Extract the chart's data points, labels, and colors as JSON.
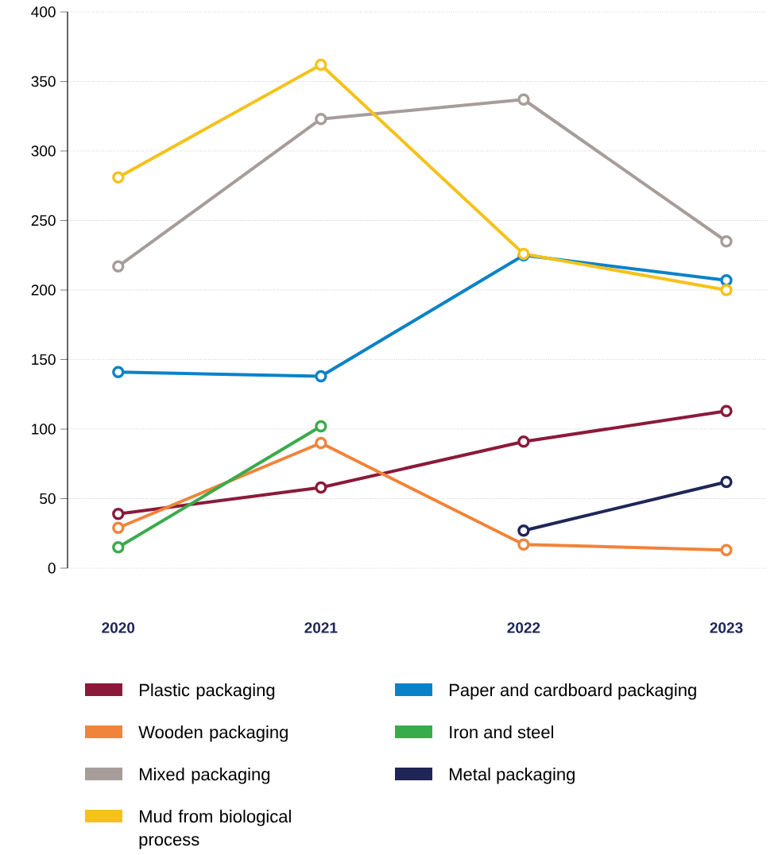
{
  "chart_data": {
    "type": "line",
    "categories": [
      "2020",
      "2021",
      "2022",
      "2023"
    ],
    "series": [
      {
        "name": "Plastic packaging",
        "color": "#8b1a3a",
        "values": [
          39,
          58,
          91,
          113
        ]
      },
      {
        "name": "Paper and cardboard packaging",
        "color": "#0a82c8",
        "values": [
          141,
          138,
          225,
          207
        ]
      },
      {
        "name": "Wooden packaging",
        "color": "#f0843a",
        "values": [
          29,
          90,
          17,
          13
        ]
      },
      {
        "name": "Iron and steel",
        "color": "#3aab4a",
        "values": [
          15,
          102,
          null,
          null
        ]
      },
      {
        "name": "Mixed packaging",
        "color": "#a69d9a",
        "values": [
          217,
          323,
          337,
          235
        ]
      },
      {
        "name": "Metal packaging",
        "color": "#1f2657",
        "values": [
          null,
          null,
          27,
          62
        ]
      },
      {
        "name": "Mud from biological process",
        "color": "#f5c21b",
        "values": [
          281,
          362,
          226,
          200
        ]
      }
    ],
    "ylim": [
      0,
      400
    ],
    "yticks": [
      0,
      50,
      100,
      150,
      200,
      250,
      300,
      350,
      400
    ],
    "grid": "y",
    "legend": "bottom",
    "marker": "circle",
    "line_style": "solid"
  }
}
